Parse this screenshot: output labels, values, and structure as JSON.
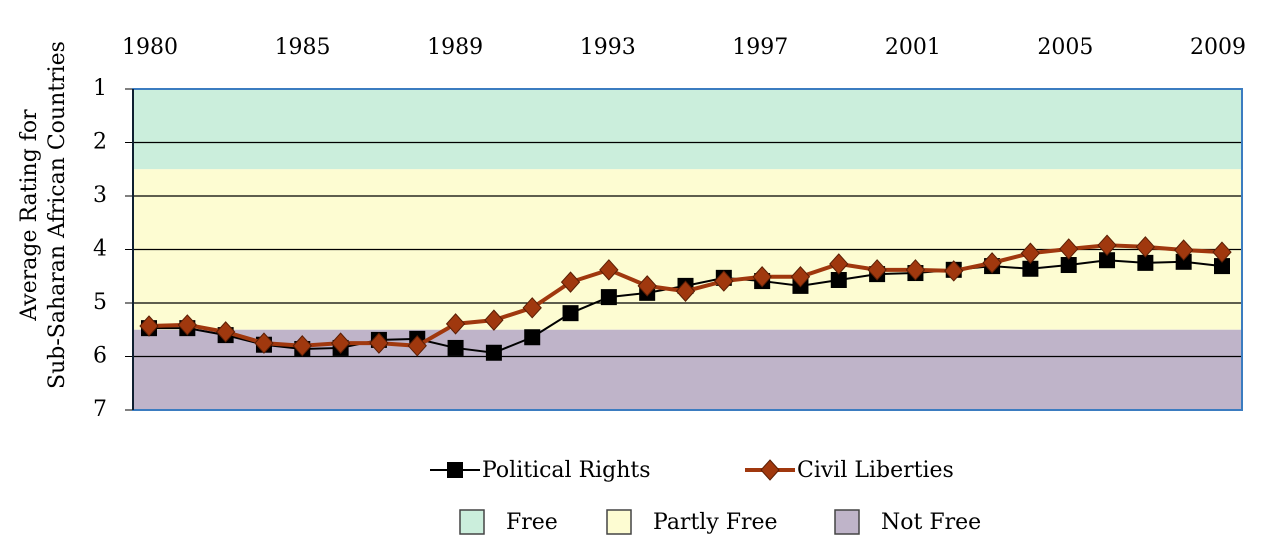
{
  "chart_data": {
    "type": "line",
    "ylabel": [
      "Average Rating for",
      "Sub-Saharan African Countries"
    ],
    "categories": [
      null,
      null,
      null,
      null,
      null,
      null,
      null,
      null,
      null,
      null,
      null,
      null,
      null,
      null,
      null,
      null,
      null,
      null,
      null,
      null,
      null,
      null,
      null,
      null,
      null,
      null,
      null,
      null,
      null
    ],
    "xticklabels": [
      "1980",
      "1985",
      "1989",
      "1993",
      "1997",
      "2001",
      "2005",
      "2009"
    ],
    "ylim": [
      1,
      7
    ],
    "yticks": [
      1,
      2,
      3,
      4,
      5,
      6,
      7
    ],
    "y_inverted": true,
    "grid": true,
    "series": [
      {
        "name": "Political Rights",
        "color": "#000000",
        "marker": "square",
        "values": [
          5.47,
          5.47,
          5.6,
          5.78,
          5.86,
          5.84,
          5.69,
          5.67,
          5.84,
          5.93,
          5.64,
          5.19,
          4.89,
          4.81,
          4.68,
          4.53,
          4.59,
          4.68,
          4.57,
          4.46,
          4.44,
          4.38,
          4.31,
          4.36,
          4.29,
          4.2,
          4.25,
          4.23,
          4.31
        ]
      },
      {
        "name": "Civil Liberties",
        "color": "#a0380e",
        "marker": "diamond",
        "values": [
          5.43,
          5.41,
          5.54,
          5.75,
          5.8,
          5.75,
          5.75,
          5.8,
          5.39,
          5.32,
          5.09,
          4.61,
          4.38,
          4.68,
          4.78,
          4.59,
          4.51,
          4.51,
          4.27,
          4.38,
          4.38,
          4.4,
          4.25,
          4.07,
          3.99,
          3.92,
          3.95,
          4.01,
          4.05
        ]
      }
    ],
    "bands": [
      {
        "name": "Free",
        "from": 1,
        "to": 2.5,
        "color": "#cbeedc"
      },
      {
        "name": "Partly Free",
        "from": 2.5,
        "to": 5.5,
        "color": "#fdfcd2"
      },
      {
        "name": "Not Free",
        "from": 5.5,
        "to": 7,
        "color": "#bfb4c9"
      }
    ]
  }
}
